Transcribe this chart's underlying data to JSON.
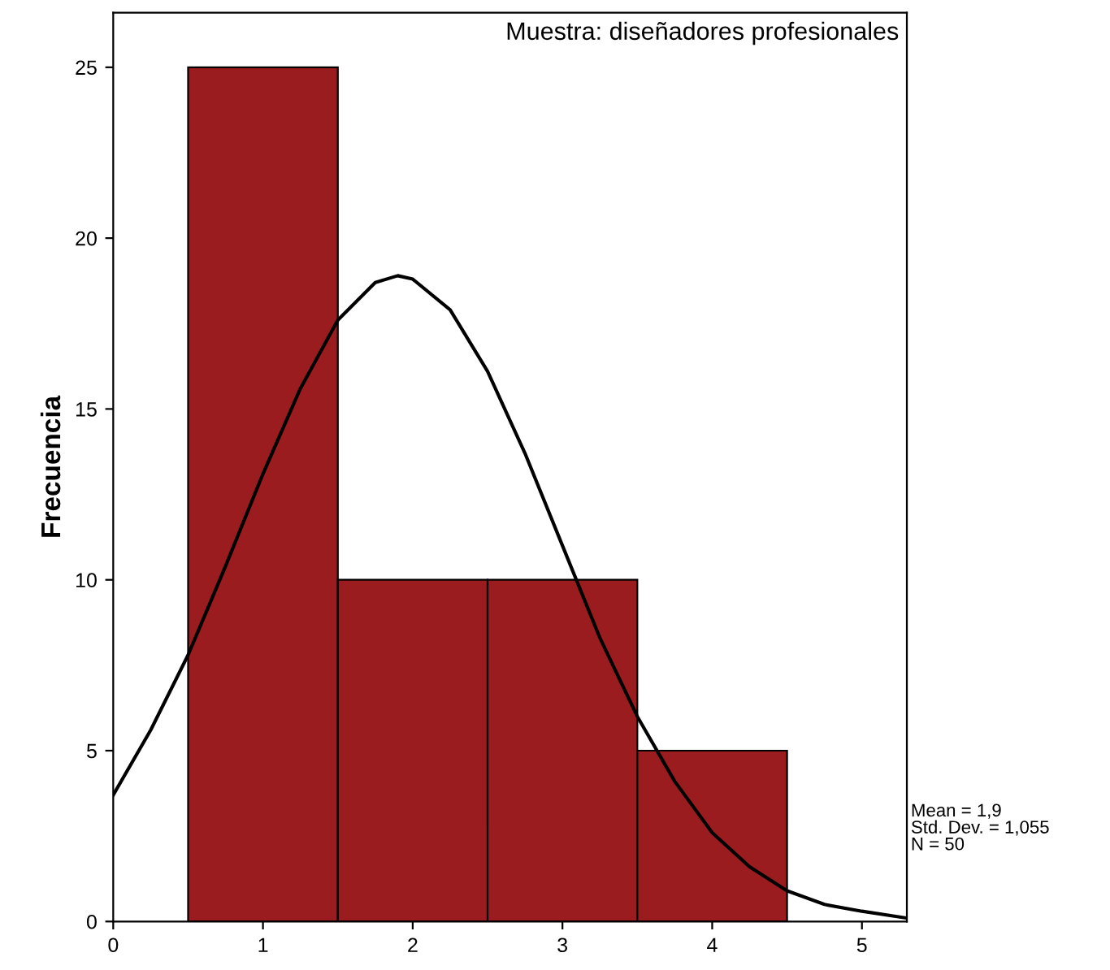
{
  "chart_data": {
    "type": "histogram",
    "ylabel": "Frecuencia",
    "annotations": [
      "Muestra: diseñadores profesionales",
      "Mean = 1,9\nStd. Dev. = 1,055\nN = 50"
    ],
    "series": [
      {
        "type": "histogram",
        "color": "#9b1c1f",
        "bins": [
          0.5,
          1.5,
          2.5,
          3.5,
          4.5
        ],
        "values": [
          25,
          10,
          10,
          5
        ]
      },
      {
        "type": "line",
        "color": "#000000",
        "x": [
          0,
          0.25,
          0.5,
          0.75,
          1.0,
          1.25,
          1.5,
          1.75,
          1.9,
          2.0,
          2.25,
          2.5,
          2.75,
          3.0,
          3.25,
          3.5,
          3.75,
          4.0,
          4.25,
          4.5,
          4.75,
          5.0,
          5.3
        ],
        "values": [
          3.7,
          5.6,
          7.8,
          10.4,
          13.1,
          15.6,
          17.6,
          18.7,
          18.9,
          18.8,
          17.9,
          16.1,
          13.7,
          11.0,
          8.3,
          6.0,
          4.1,
          2.6,
          1.6,
          0.9,
          0.5,
          0.3,
          0.1
        ]
      }
    ],
    "xlim": [
      0,
      5.3
    ],
    "xticks": [
      0,
      1,
      2,
      3,
      4,
      5
    ],
    "ylim": [
      0,
      26.6
    ],
    "yticks": [
      0,
      5,
      10,
      15,
      20,
      25
    ],
    "grid": false,
    "legend": false
  }
}
